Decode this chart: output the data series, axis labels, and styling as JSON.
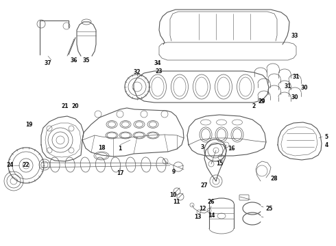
{
  "bg_color": "#ffffff",
  "line_color": "#555555",
  "label_color": "#111111",
  "font_size": 5.5,
  "fig_width": 4.9,
  "fig_height": 3.6,
  "dpi": 100
}
